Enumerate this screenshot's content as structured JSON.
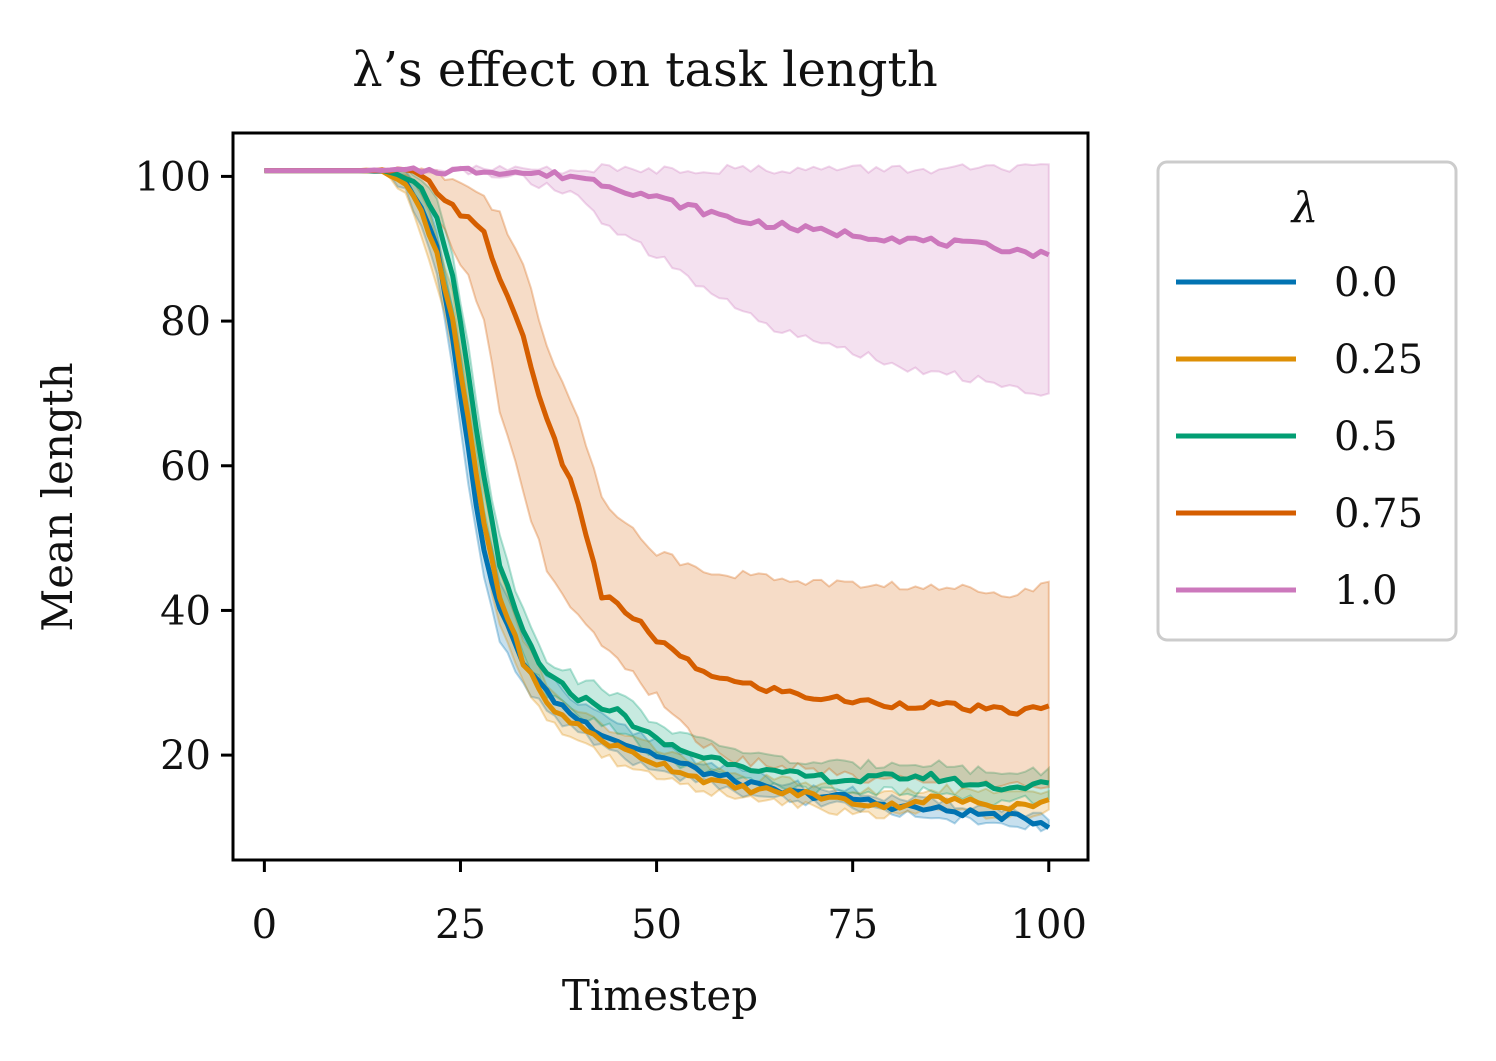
{
  "chart_data": {
    "type": "line",
    "title": "λ’s effect on task length",
    "xlabel": "Timestep",
    "ylabel": "Mean length",
    "xlim": [
      -4,
      105
    ],
    "ylim": [
      5.5,
      106
    ],
    "xticks": [
      0,
      25,
      50,
      75,
      100
    ],
    "yticks": [
      20,
      40,
      60,
      80,
      100
    ],
    "grid": false,
    "legend": {
      "title": "λ",
      "placement": "outside-right"
    },
    "shaded_band": "confidence interval around each series mean",
    "series": [
      {
        "name": "0.0",
        "color": "#0173b2",
        "x": [
          0,
          5,
          10,
          15,
          18,
          20,
          22,
          24,
          26,
          28,
          30,
          33,
          36,
          40,
          45,
          50,
          55,
          60,
          65,
          70,
          75,
          80,
          85,
          90,
          95,
          100
        ],
        "mean": [
          100.8,
          100.8,
          100.8,
          100.8,
          99.5,
          96,
          90,
          78,
          62,
          48,
          40,
          33,
          28.5,
          25,
          22,
          20,
          18,
          16.5,
          15,
          14.5,
          14,
          13,
          12.5,
          12,
          11.5,
          10.5
        ],
        "upper": [
          100.8,
          100.8,
          100.8,
          100.8,
          100.5,
          98,
          93,
          82,
          67,
          53,
          44,
          36,
          31,
          27,
          24,
          22,
          19.5,
          18,
          16.5,
          15.5,
          15,
          14,
          13.5,
          13,
          12.5,
          11.5
        ],
        "lower": [
          100.8,
          100.8,
          100.8,
          100.8,
          98,
          93,
          86,
          74,
          57,
          44,
          36,
          30,
          26,
          23,
          20,
          18,
          16.5,
          15,
          14,
          13.5,
          13,
          12,
          11.5,
          11,
          10.5,
          9.8
        ]
      },
      {
        "name": "0.25",
        "color": "#de8f05",
        "x": [
          0,
          5,
          10,
          15,
          18,
          20,
          22,
          24,
          26,
          28,
          30,
          33,
          36,
          40,
          45,
          50,
          55,
          60,
          65,
          70,
          75,
          80,
          85,
          90,
          95,
          100
        ],
        "mean": [
          100.8,
          100.8,
          100.8,
          100.8,
          99,
          95,
          89,
          80,
          66,
          52,
          42,
          33,
          27,
          24,
          21,
          19,
          17,
          15.5,
          15,
          14.5,
          13.5,
          13,
          14,
          13.5,
          13,
          13.5
        ],
        "upper": [
          100.8,
          100.8,
          100.8,
          100.8,
          100.5,
          97.5,
          92,
          84,
          70,
          56,
          46,
          36,
          29.5,
          26,
          23,
          21,
          19,
          17,
          16.5,
          16,
          15,
          14.5,
          15.5,
          15,
          14.5,
          15
        ],
        "lower": [
          100.8,
          100.8,
          100.8,
          100.8,
          97.5,
          92,
          85,
          76,
          62,
          48,
          38,
          30,
          25,
          22,
          19,
          17,
          15.5,
          14,
          13.5,
          13,
          12,
          11.5,
          12.5,
          12,
          11.5,
          12
        ]
      },
      {
        "name": "0.5",
        "color": "#029e73",
        "x": [
          0,
          5,
          10,
          15,
          18,
          20,
          22,
          24,
          26,
          28,
          30,
          33,
          36,
          40,
          45,
          50,
          55,
          60,
          65,
          70,
          75,
          80,
          85,
          90,
          95,
          100
        ],
        "mean": [
          100.8,
          100.8,
          100.8,
          100.8,
          100,
          98,
          94,
          86,
          73,
          58,
          46,
          37,
          31,
          28,
          26,
          22,
          20,
          19,
          17.5,
          17,
          16.5,
          17,
          17,
          16,
          15.5,
          16
        ],
        "upper": [
          100.8,
          100.8,
          100.8,
          100.8,
          101,
          100,
          96.5,
          89,
          77,
          62,
          50,
          40,
          33.5,
          30.5,
          28.5,
          24.5,
          22,
          21,
          19.5,
          19,
          18.5,
          19,
          19,
          18,
          17.5,
          18
        ],
        "lower": [
          100.8,
          100.8,
          100.8,
          100.8,
          99,
          96,
          91,
          82,
          69,
          54,
          42,
          34,
          28.5,
          25.5,
          23.5,
          20,
          18,
          17,
          15.5,
          15,
          14.5,
          15,
          15,
          14,
          13.5,
          14
        ]
      },
      {
        "name": "0.75",
        "color": "#d55e00",
        "x": [
          0,
          5,
          10,
          15,
          18,
          20,
          22,
          24,
          26,
          28,
          30,
          33,
          36,
          40,
          43,
          46,
          50,
          55,
          60,
          65,
          70,
          75,
          80,
          85,
          90,
          95,
          100
        ],
        "mean": [
          100.8,
          100.8,
          100.8,
          100.8,
          100.8,
          100,
          98,
          96,
          94,
          92,
          86,
          78,
          66,
          55,
          42,
          40,
          36,
          32,
          30,
          29,
          28,
          27.5,
          27,
          27,
          26.5,
          26,
          26.5
        ],
        "upper": [
          100.8,
          100.8,
          100.8,
          100.8,
          101,
          101,
          100.5,
          99.5,
          98.5,
          97,
          95,
          88,
          76,
          67,
          56,
          52,
          48,
          46,
          45,
          44.5,
          44,
          43.5,
          43.5,
          43,
          43,
          42.5,
          43.5
        ],
        "lower": [
          100.8,
          100.8,
          100.8,
          100.8,
          100,
          98,
          94,
          90,
          86,
          80,
          68,
          56,
          46,
          39,
          35,
          32,
          28,
          22,
          19.5,
          18.5,
          18,
          17,
          16.5,
          16.5,
          16,
          16,
          15.5
        ]
      },
      {
        "name": "1.0",
        "color": "#cc78bc",
        "x": [
          0,
          10,
          20,
          30,
          35,
          40,
          45,
          50,
          55,
          60,
          65,
          70,
          75,
          80,
          85,
          90,
          95,
          100
        ],
        "mean": [
          100.8,
          100.8,
          100.8,
          100.8,
          100.3,
          100,
          98.5,
          97,
          95.5,
          94,
          93.3,
          92.5,
          92,
          91.5,
          91,
          90.5,
          90,
          89
        ],
        "upper": [
          100.8,
          100.8,
          100.8,
          101,
          101,
          101,
          101,
          101,
          101,
          101,
          101,
          101,
          101,
          101,
          101,
          101,
          101,
          101
        ],
        "lower": [
          100.8,
          100.8,
          100.8,
          100.5,
          99,
          97,
          92,
          89,
          85,
          82,
          79,
          77,
          76,
          74,
          73,
          72,
          71,
          69.5
        ]
      }
    ]
  }
}
